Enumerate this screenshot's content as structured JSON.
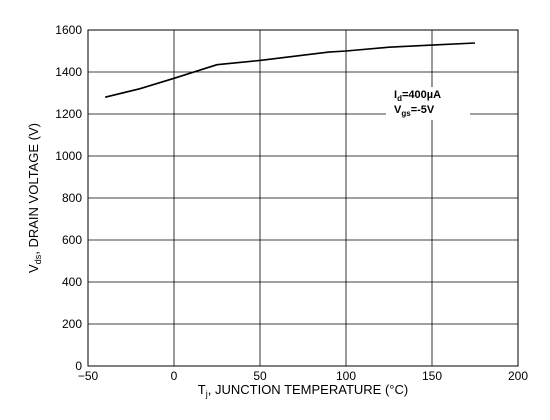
{
  "chart_data": {
    "type": "line",
    "xlabel_parts": {
      "main": "T",
      "sub": "j",
      "rest": ", JUNCTION TEMPERATURE (°C)"
    },
    "ylabel_parts": {
      "main": "V",
      "sub": "ds",
      "rest": ", DRAIN VOLTAGE (V)"
    },
    "xlim": [
      -50,
      200
    ],
    "ylim": [
      0,
      1600
    ],
    "x_ticks": [
      -50,
      0,
      50,
      100,
      150,
      200
    ],
    "y_ticks": [
      0,
      200,
      400,
      600,
      800,
      1000,
      1200,
      1400,
      1600
    ],
    "x_tick_labels": [
      "−50",
      "0",
      "50",
      "100",
      "150",
      "200"
    ],
    "y_tick_labels": [
      "0",
      "200",
      "400",
      "600",
      "800",
      "1000",
      "1200",
      "1400",
      "1600"
    ],
    "grid": true,
    "series": [
      {
        "x": [
          -40,
          -20,
          0,
          25,
          50,
          75,
          90,
          100,
          125,
          150,
          175
        ],
        "y": [
          1280,
          1320,
          1370,
          1435,
          1455,
          1480,
          1495,
          1500,
          1518,
          1528,
          1538
        ]
      }
    ],
    "annotations": [
      {
        "main": "I",
        "sub": "d",
        "rest": "=400µA"
      },
      {
        "main": "V",
        "sub": "gs",
        "rest": "=-5V"
      }
    ]
  }
}
